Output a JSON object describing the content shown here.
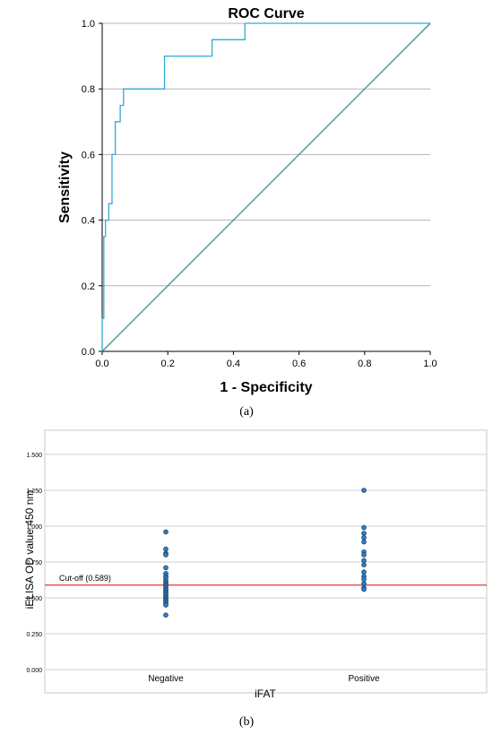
{
  "panels": {
    "a_label": "(a)",
    "b_label": "(b)"
  },
  "chart_data": [
    {
      "type": "line",
      "title": "ROC Curve",
      "xlabel": "1 - Specificity",
      "ylabel": "Sensitivity",
      "xlim": [
        0.0,
        1.0
      ],
      "ylim": [
        0.0,
        1.0
      ],
      "xticks": [
        "0.0",
        "0.2",
        "0.4",
        "0.6",
        "0.8",
        "1.0"
      ],
      "yticks": [
        "0.0",
        "0.2",
        "0.4",
        "0.6",
        "0.8",
        "1.0"
      ],
      "grid": "horizontal",
      "series": [
        {
          "color": "#33a9d6",
          "x": [
            0.0,
            0.0,
            0.005,
            0.005,
            0.01,
            0.01,
            0.02,
            0.02,
            0.03,
            0.03,
            0.04,
            0.04,
            0.055,
            0.055,
            0.065,
            0.065,
            0.09,
            0.09,
            0.19,
            0.19,
            0.335,
            0.335,
            0.425,
            0.425,
            0.435,
            0.435,
            1.0
          ],
          "y": [
            0.0,
            0.1,
            0.1,
            0.35,
            0.35,
            0.4,
            0.4,
            0.45,
            0.45,
            0.6,
            0.6,
            0.7,
            0.7,
            0.75,
            0.75,
            0.8,
            0.8,
            0.8,
            0.8,
            0.9,
            0.9,
            0.95,
            0.95,
            0.95,
            0.95,
            1.0,
            1.0
          ]
        },
        {
          "color": "#3a8d96",
          "x": [
            0.0,
            1.0
          ],
          "y": [
            0.0,
            1.0
          ]
        }
      ]
    },
    {
      "type": "scatter",
      "xlabel": "iFAT",
      "ylabel": "iELISA OD value 450 nm",
      "categories": [
        "Negative",
        "Positive"
      ],
      "ylim": [
        0.0,
        1.6
      ],
      "yticks": [
        "0.000",
        "0.250",
        "0.500",
        "0.750",
        "1.000",
        "1.250",
        "1.500"
      ],
      "grid": "horizontal",
      "point_color": "#2f7fc1",
      "cutoff": {
        "value": 0.589,
        "label": "Cut-off (0.589)",
        "color": "#e03a3a"
      },
      "series": [
        {
          "category": "Negative",
          "values": [
            0.96,
            0.84,
            0.81,
            0.8,
            0.71,
            0.67,
            0.65,
            0.64,
            0.62,
            0.61,
            0.6,
            0.59,
            0.58,
            0.57,
            0.56,
            0.55,
            0.54,
            0.53,
            0.52,
            0.51,
            0.5,
            0.49,
            0.48,
            0.47,
            0.46,
            0.45,
            0.38
          ]
        },
        {
          "category": "Positive",
          "values": [
            1.25,
            0.99,
            0.95,
            0.92,
            0.89,
            0.82,
            0.8,
            0.76,
            0.73,
            0.68,
            0.65,
            0.63,
            0.6,
            0.57,
            0.56
          ]
        }
      ]
    }
  ]
}
